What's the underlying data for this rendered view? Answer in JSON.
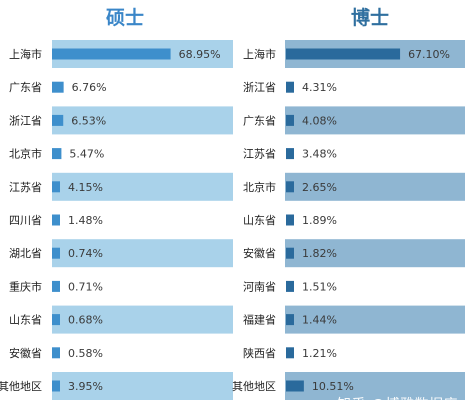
{
  "colors": {
    "left_band": "#a9d2ea",
    "left_bar": "#3e8fcc",
    "left_title": "#3a86c8",
    "right_band": "#8fb6d2",
    "right_bar": "#2a6a9c",
    "right_title": "#2f6f9f"
  },
  "watermark": "知乎 @博雅数据库",
  "chart_data": [
    {
      "type": "bar",
      "orientation": "horizontal",
      "title": "硕士",
      "categories": [
        "上海市",
        "广东省",
        "浙江省",
        "北京市",
        "江苏省",
        "四川省",
        "湖北省",
        "重庆市",
        "山东省",
        "安徽省",
        "其他地区"
      ],
      "values": [
        68.95,
        6.76,
        6.53,
        5.47,
        4.15,
        1.48,
        0.74,
        0.71,
        0.68,
        0.58,
        3.95
      ],
      "labels": [
        "68.95%",
        "6.76%",
        "6.53%",
        "5.47%",
        "4.15%",
        "1.48%",
        "0.74%",
        "0.71%",
        "0.68%",
        "0.58%",
        "3.95%"
      ],
      "banded_rows": [
        0,
        2,
        4,
        6,
        8,
        10
      ],
      "unit": "%"
    },
    {
      "type": "bar",
      "orientation": "horizontal",
      "title": "博士",
      "categories": [
        "上海市",
        "浙江省",
        "广东省",
        "江苏省",
        "北京市",
        "山东省",
        "安徽省",
        "河南省",
        "福建省",
        "陕西省",
        "其他地区"
      ],
      "values": [
        67.1,
        4.31,
        4.08,
        3.48,
        2.65,
        1.89,
        1.82,
        1.51,
        1.44,
        1.21,
        10.51
      ],
      "labels": [
        "67.10%",
        "4.31%",
        "4.08%",
        "3.48%",
        "2.65%",
        "1.89%",
        "1.82%",
        "1.51%",
        "1.44%",
        "1.21%",
        "10.51%"
      ],
      "banded_rows": [
        0,
        2,
        4,
        6,
        8,
        10
      ],
      "unit": "%"
    }
  ]
}
